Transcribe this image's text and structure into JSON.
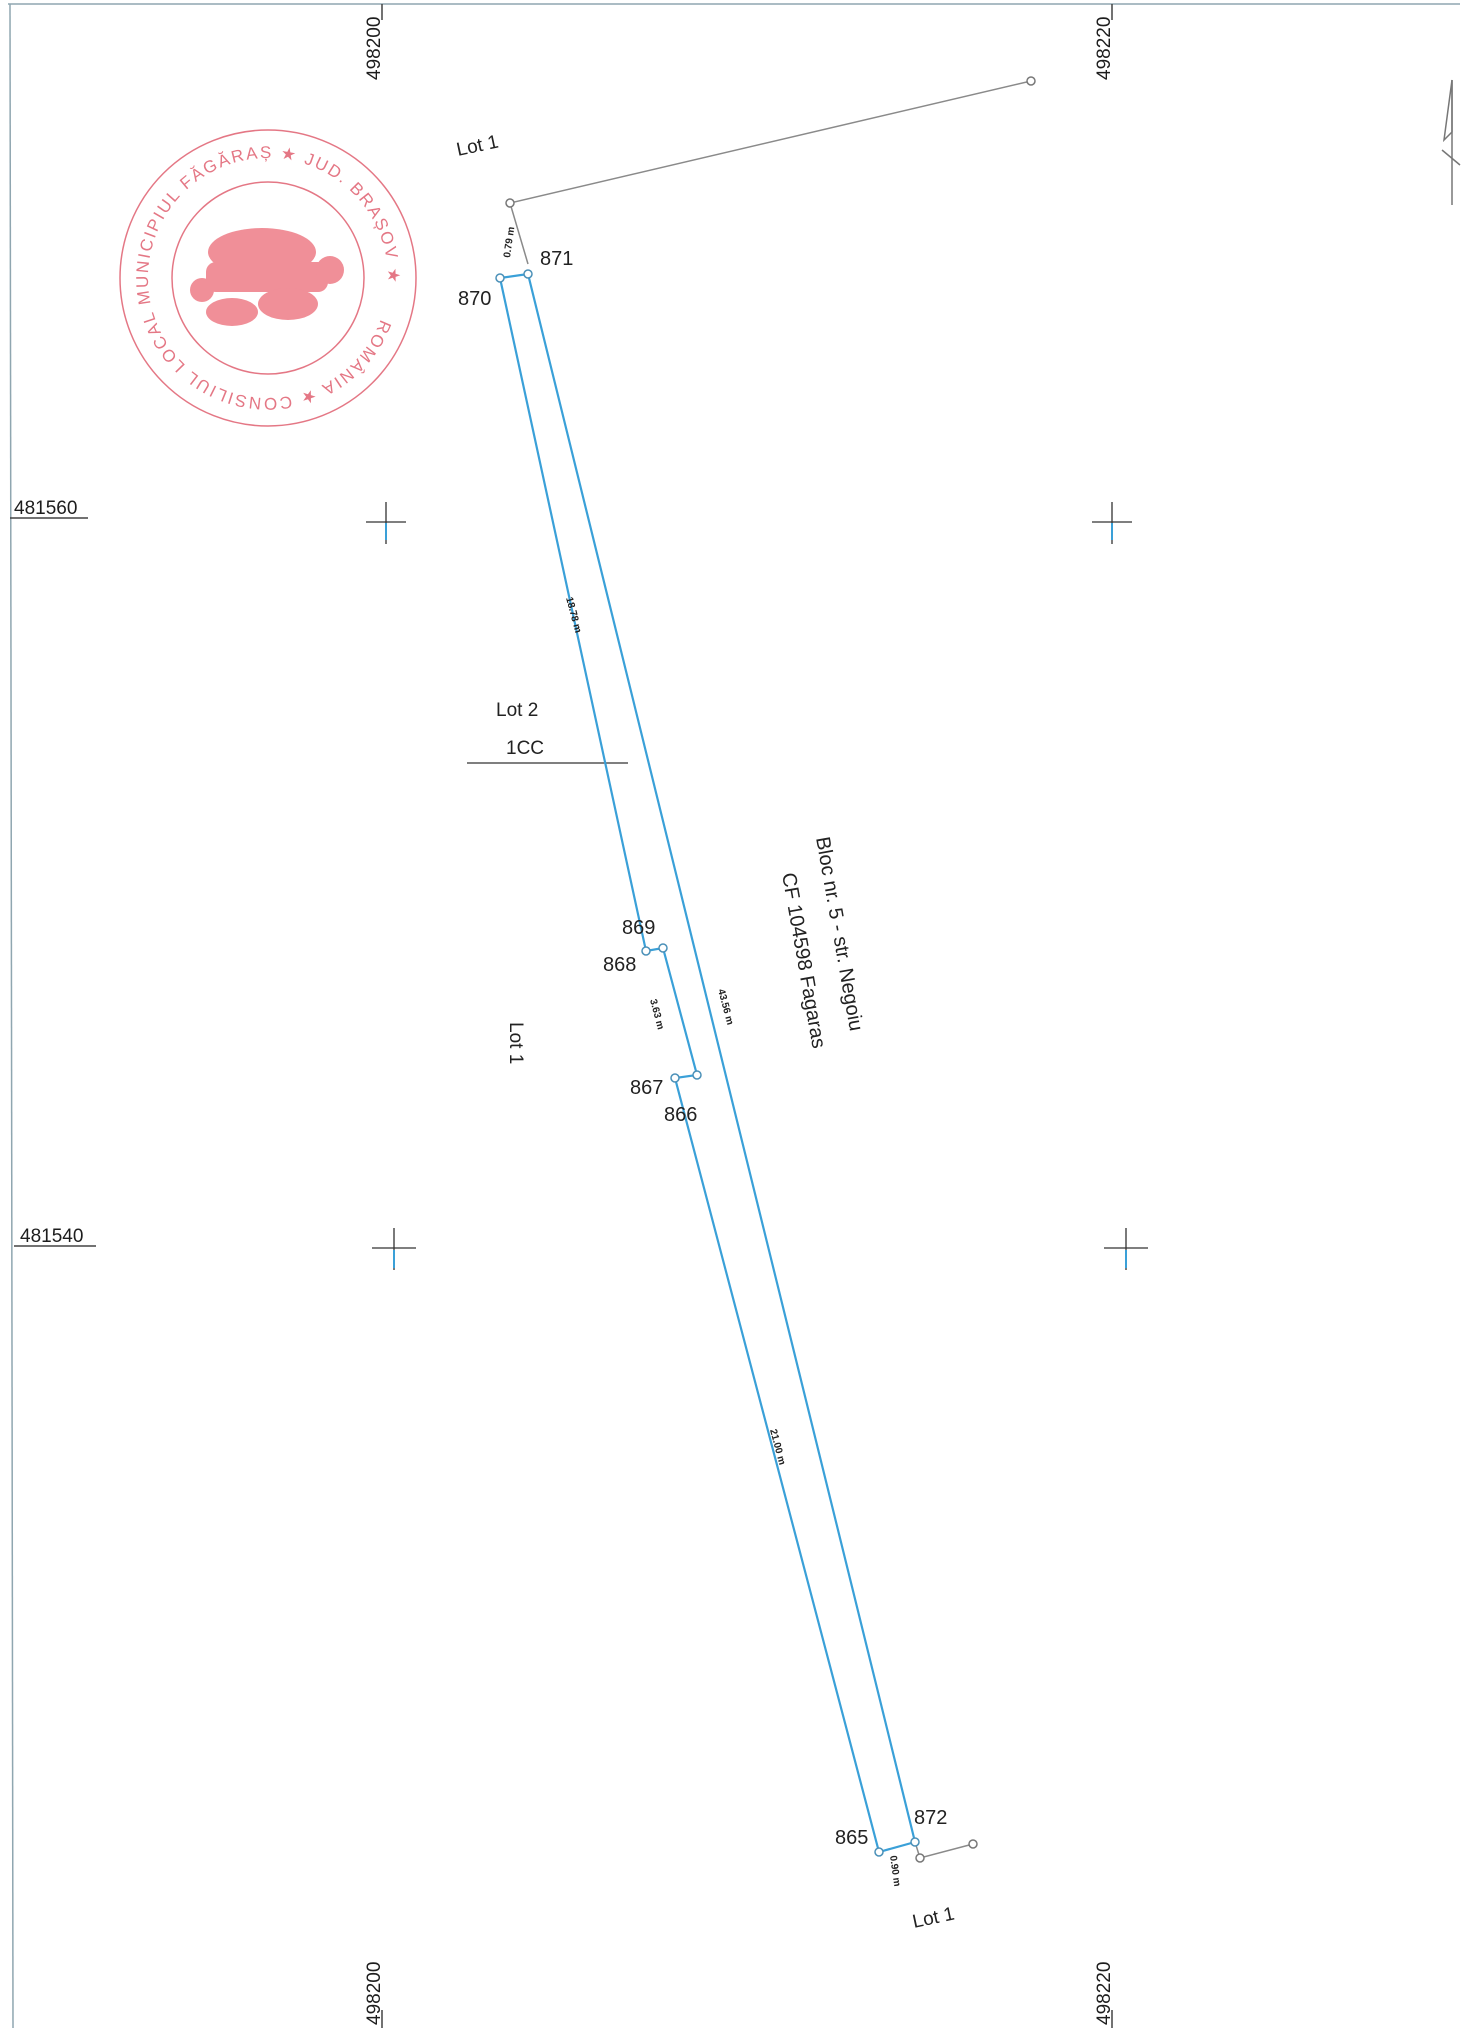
{
  "grid": {
    "top_x_labels": [
      "498200",
      "498220"
    ],
    "bottom_x_labels": [
      "498200",
      "498220"
    ],
    "y_labels": [
      "481560",
      "481540"
    ]
  },
  "seal": {
    "text": "ROMÂNIA ★ CONSILIUL LOCAL MUNICIPIUL FĂGĂRAȘ ★ JUD. BRAȘOV ★",
    "color": "#e05a6a"
  },
  "lots": {
    "lot1_top": "Lot 1",
    "lot1_left": "Lot 1",
    "lot1_bottom": "Lot 1",
    "lot2": "Lot 2",
    "lot2_code": "1CC"
  },
  "building": {
    "line1": "Bloc nr. 5 - str. Negoiu",
    "line2": "CF 104598 Fagaras"
  },
  "points": {
    "p865": "865",
    "p866": "866",
    "p867": "867",
    "p868": "868",
    "p869": "869",
    "p870": "870",
    "p871": "871",
    "p872": "872"
  },
  "dimensions": {
    "top": "0.79 m",
    "upper_left": "18.78 m",
    "notch": "3.63 m",
    "right": "43.56 m",
    "lower_left": "21.00 m",
    "bottom": "0.90 m"
  },
  "colors": {
    "parcel": "#3aa0d8",
    "neighbor": "#808080",
    "seal": "#e05a6a"
  }
}
